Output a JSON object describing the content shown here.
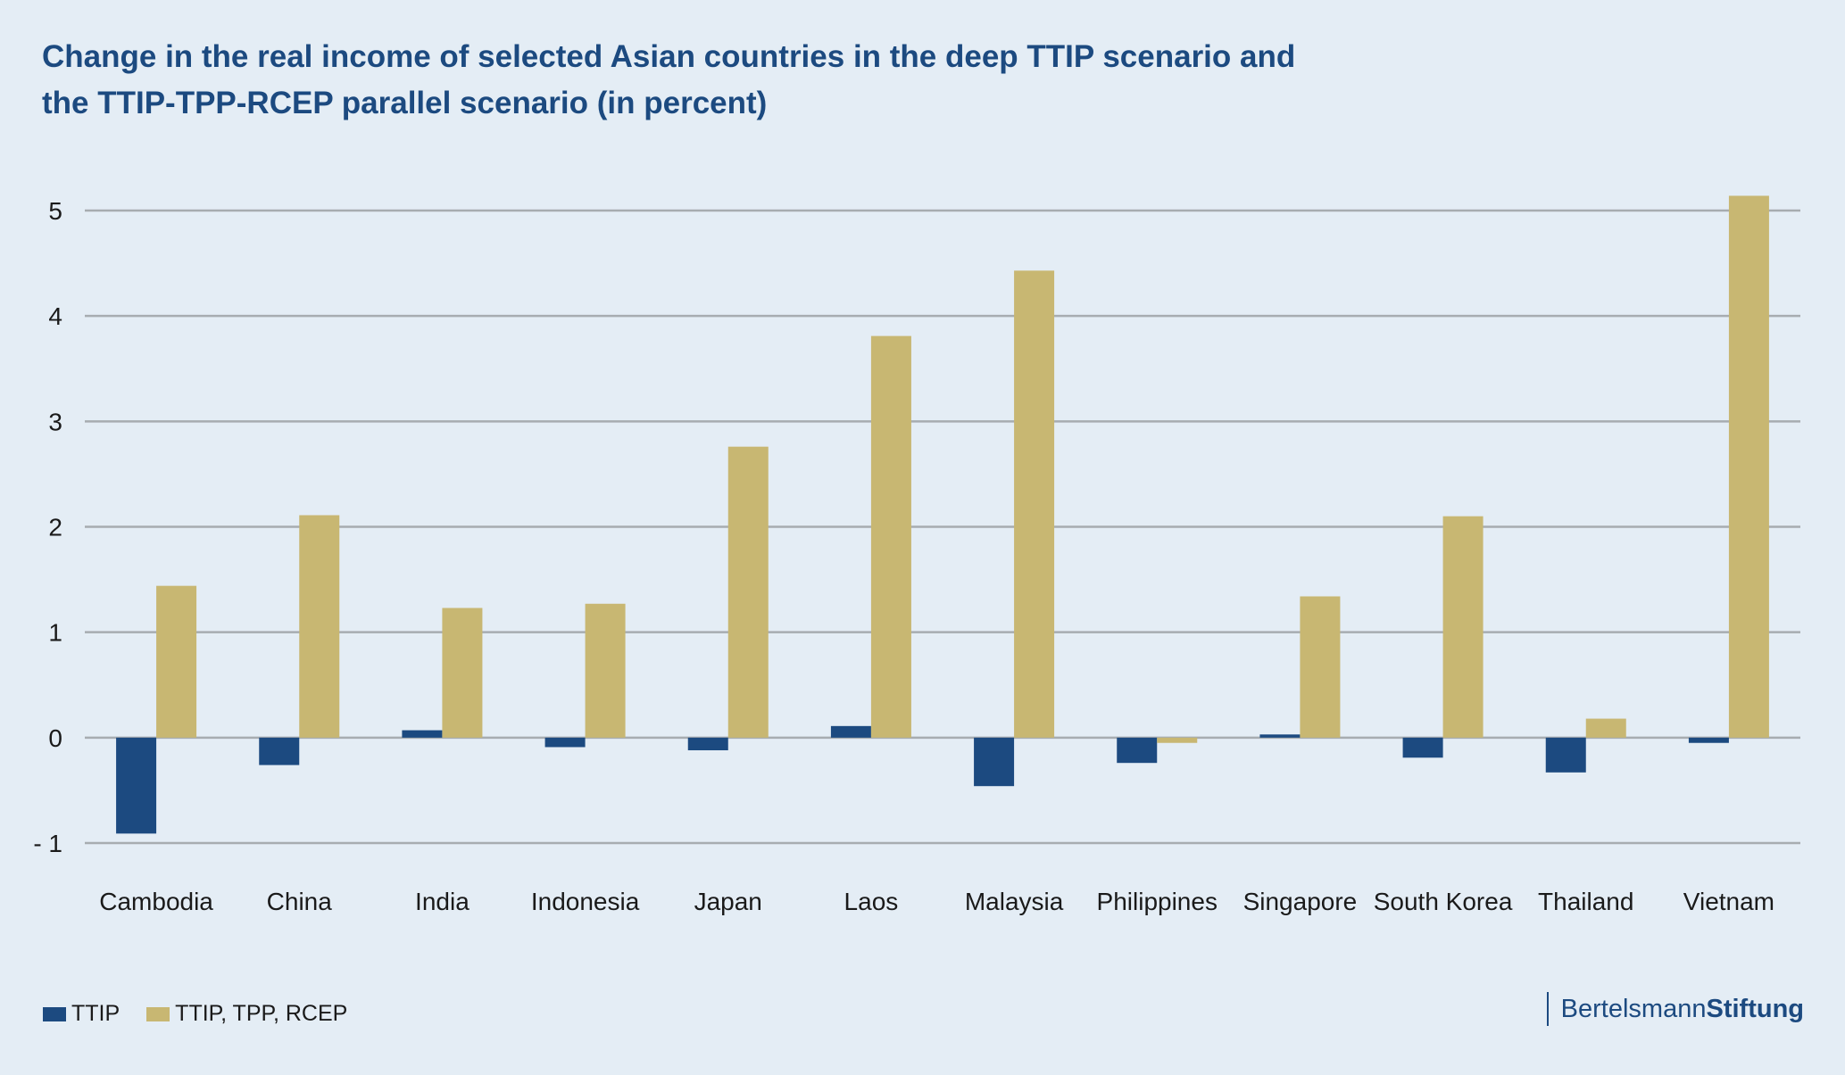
{
  "chart_data": {
    "type": "bar",
    "title": "Change in the real income of selected Asian countries in the deep TTIP scenario and the TTIP-TPP-RCEP parallel scenario (in percent)",
    "title_lines": [
      "Change in the real income of selected Asian countries in the deep TTIP scenario and",
      "the TTIP-TPP-RCEP parallel scenario (in percent)"
    ],
    "categories": [
      "Cambodia",
      "China",
      "India",
      "Indonesia",
      "Japan",
      "Laos",
      "Malaysia",
      "Philippines",
      "Singapore",
      "South Korea",
      "Thailand",
      "Vietnam"
    ],
    "series": [
      {
        "name": "TTIP",
        "color": "#1c4a80",
        "values": [
          -0.91,
          -0.26,
          0.07,
          -0.09,
          -0.12,
          0.11,
          -0.46,
          -0.24,
          0.03,
          -0.19,
          -0.33,
          -0.05
        ]
      },
      {
        "name": "TTIP, TPP, RCEP",
        "color": "#c8b772",
        "values": [
          1.44,
          2.11,
          1.23,
          1.27,
          2.76,
          3.81,
          4.43,
          -0.05,
          1.34,
          2.1,
          0.18,
          5.14
        ]
      }
    ],
    "yticks": [
      -1,
      0,
      1,
      2,
      3,
      4,
      5
    ],
    "ytick_labels": [
      "- 1",
      "0",
      "1",
      "2",
      "3",
      "4",
      "5"
    ],
    "ylim": [
      -1,
      5
    ],
    "grid": true,
    "legend_position": "bottom-left",
    "xlabel": "",
    "ylabel": ""
  },
  "legend": {
    "items": [
      {
        "label": "TTIP",
        "color": "#1c4a80"
      },
      {
        "label": "TTIP, TPP, RCEP",
        "color": "#c8b772"
      }
    ]
  },
  "brand": {
    "part1": "Bertelsmann",
    "part2": "Stiftung"
  },
  "colors": {
    "background": "#e4edf5",
    "grid": "#a7acb0",
    "title": "#1c4a80"
  }
}
